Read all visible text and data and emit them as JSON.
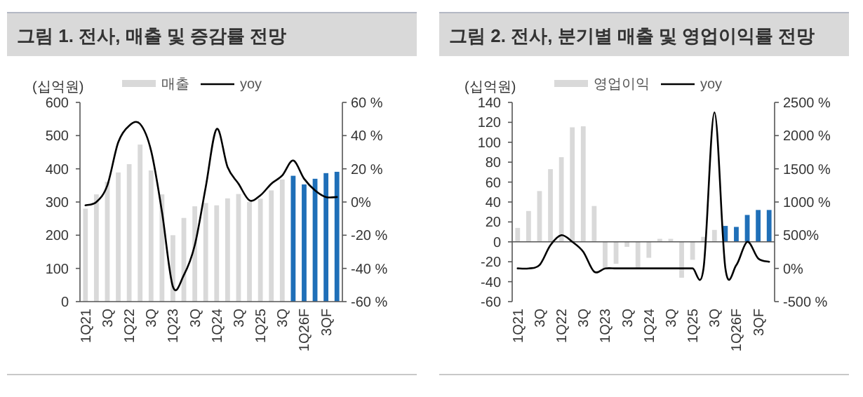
{
  "chart_data": [
    {
      "type": "bar",
      "title": "그림 1. 전사, 매출 및 증감률 전망",
      "ylabel": "(십억원)",
      "legend": "top",
      "categories": [
        "1Q21",
        null,
        "3Q",
        null,
        "1Q22",
        null,
        "3Q",
        null,
        "1Q23",
        null,
        "3Q",
        null,
        "1Q24",
        null,
        "3Q",
        null,
        "1Q25",
        null,
        "3Q",
        null,
        "1Q26F",
        null,
        "3QF",
        null
      ],
      "ylim": [
        0,
        600
      ],
      "yticks": [
        0,
        100,
        200,
        300,
        400,
        500,
        600
      ],
      "y2lim": [
        -60,
        60
      ],
      "y2ticks": [
        {
          "value": -60,
          "label": "-60 %"
        },
        {
          "value": -40,
          "label": "-40 %"
        },
        {
          "value": -20,
          "label": "-20 %"
        },
        {
          "value": 0,
          "label": "0%"
        },
        {
          "value": 20,
          "label": "20 %"
        },
        {
          "value": 40,
          "label": "40 %"
        },
        {
          "value": 60,
          "label": "60 %"
        }
      ],
      "series": [
        {
          "name": "매출",
          "color": "#d9d9d9",
          "colors": [
            "#d9d9d9",
            "#d9d9d9",
            "#d9d9d9",
            "#d9d9d9",
            "#d9d9d9",
            "#d9d9d9",
            "#d9d9d9",
            "#d9d9d9",
            "#d9d9d9",
            "#d9d9d9",
            "#d9d9d9",
            "#d9d9d9",
            "#d9d9d9",
            "#d9d9d9",
            "#d9d9d9",
            "#d9d9d9",
            "#d9d9d9",
            "#d9d9d9",
            "#d9d9d9",
            "#1f6fb8",
            "#1f6fb8",
            "#1f6fb8",
            "#1f6fb8",
            "#1f6fb8"
          ],
          "values": [
            280,
            323,
            361,
            389,
            414,
            473,
            395,
            323,
            200,
            252,
            287,
            297,
            290,
            311,
            324,
            300,
            310,
            335,
            368,
            379,
            353,
            370,
            387,
            391
          ]
        },
        {
          "name": "yoy",
          "type": "line",
          "axis": "y2",
          "color": "#000000",
          "values": [
            -2,
            0,
            10,
            36,
            46,
            47,
            31,
            -6,
            -51,
            -44,
            -26,
            9,
            44,
            21,
            11,
            1,
            4,
            11,
            16,
            25,
            14,
            7,
            3,
            3
          ]
        }
      ]
    },
    {
      "type": "bar",
      "title": "그림 2. 전사, 분기별 매출 및 영업이익률 전망",
      "ylabel": "(십억원)",
      "legend": "top",
      "categories": [
        "1Q21",
        null,
        "3Q",
        null,
        "1Q22",
        null,
        "3Q",
        null,
        "1Q23",
        null,
        "3Q",
        null,
        "1Q24",
        null,
        "3Q",
        null,
        "1Q25",
        null,
        "3Q",
        null,
        "1Q26F",
        null,
        "3QF",
        null
      ],
      "ylim": [
        -60,
        140
      ],
      "yticks": [
        -60,
        -40,
        -20,
        0,
        20,
        40,
        60,
        80,
        100,
        120,
        140
      ],
      "y2lim": [
        -500,
        2500
      ],
      "y2ticks": [
        {
          "value": -500,
          "label": "-500 %"
        },
        {
          "value": 0,
          "label": "0%"
        },
        {
          "value": 500,
          "label": "500%"
        },
        {
          "value": 1000,
          "label": "1000 %"
        },
        {
          "value": 1500,
          "label": "1500 %"
        },
        {
          "value": 2000,
          "label": "2000 %"
        },
        {
          "value": 2500,
          "label": "2500 %"
        }
      ],
      "series": [
        {
          "name": "영업이익",
          "color": "#d9d9d9",
          "colors": [
            "#d9d9d9",
            "#d9d9d9",
            "#d9d9d9",
            "#d9d9d9",
            "#d9d9d9",
            "#d9d9d9",
            "#d9d9d9",
            "#d9d9d9",
            "#d9d9d9",
            "#d9d9d9",
            "#d9d9d9",
            "#d9d9d9",
            "#d9d9d9",
            "#d9d9d9",
            "#d9d9d9",
            "#d9d9d9",
            "#d9d9d9",
            "#d9d9d9",
            "#d9d9d9",
            "#1f6fb8",
            "#1f6fb8",
            "#1f6fb8",
            "#1f6fb8",
            "#1f6fb8"
          ],
          "values": [
            14,
            31,
            51,
            73,
            85,
            115,
            116,
            36,
            -27,
            -22,
            -5,
            -27,
            -16,
            3,
            3,
            -36,
            -18,
            5,
            12,
            16,
            15,
            27,
            32,
            32
          ]
        },
        {
          "name": "yoy",
          "type": "line",
          "axis": "y2",
          "color": "#000000",
          "values": [
            0,
            0,
            50,
            350,
            500,
            400,
            250,
            -50,
            0,
            0,
            0,
            0,
            0,
            0,
            0,
            0,
            0,
            0,
            2350,
            0,
            50,
            400,
            150,
            100
          ]
        }
      ]
    }
  ]
}
